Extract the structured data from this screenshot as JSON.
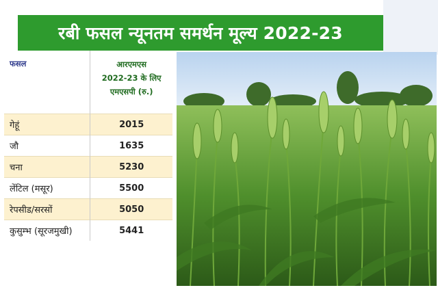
{
  "banner": {
    "title": "रबी फसल न्यूनतम समर्थन मूल्य 2022-23"
  },
  "table": {
    "header_crop": "फसल",
    "header_msp_line1": "आरएमएस",
    "header_msp_line2": "2022-23 के लिए",
    "header_msp_line3": "एमएसपी (रु.)",
    "rows": [
      {
        "crop": "गेहूं",
        "msp": "2015"
      },
      {
        "crop": "जौ",
        "msp": "1635"
      },
      {
        "crop": "चना",
        "msp": "5230"
      },
      {
        "crop": "लेंटिल (मसूर)",
        "msp": "5500"
      },
      {
        "crop": "रेपसीड/सरसों",
        "msp": "5050"
      },
      {
        "crop": "कुसुम्भ (सूरजमुखी)",
        "msp": "5441"
      }
    ]
  },
  "colors": {
    "banner": "#2e9b2e",
    "row_highlight": "#fdf1cf",
    "header_text": "#1f6b1f"
  },
  "photo": {
    "subject": "wheat-field-photo"
  }
}
